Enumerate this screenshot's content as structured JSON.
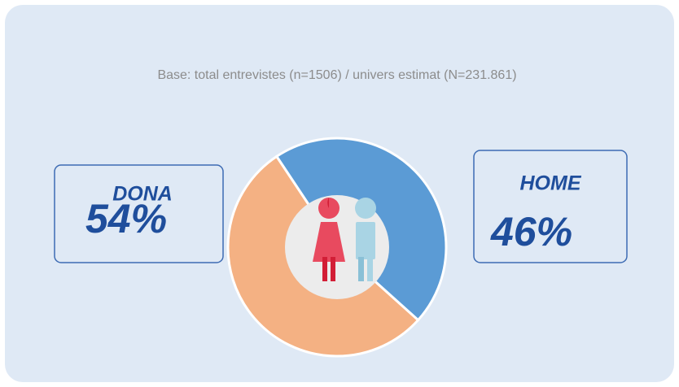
{
  "chart_data": {
    "type": "donut",
    "subtitle": "Base: total entrevistes (n=1506) / univers estimat (N=231.861)",
    "categories": [
      "DONA",
      "HOME"
    ],
    "values": [
      54,
      46
    ],
    "value_labels": [
      "54%",
      "46%"
    ],
    "colors": [
      "#f4b183",
      "#5b9bd5"
    ]
  }
}
